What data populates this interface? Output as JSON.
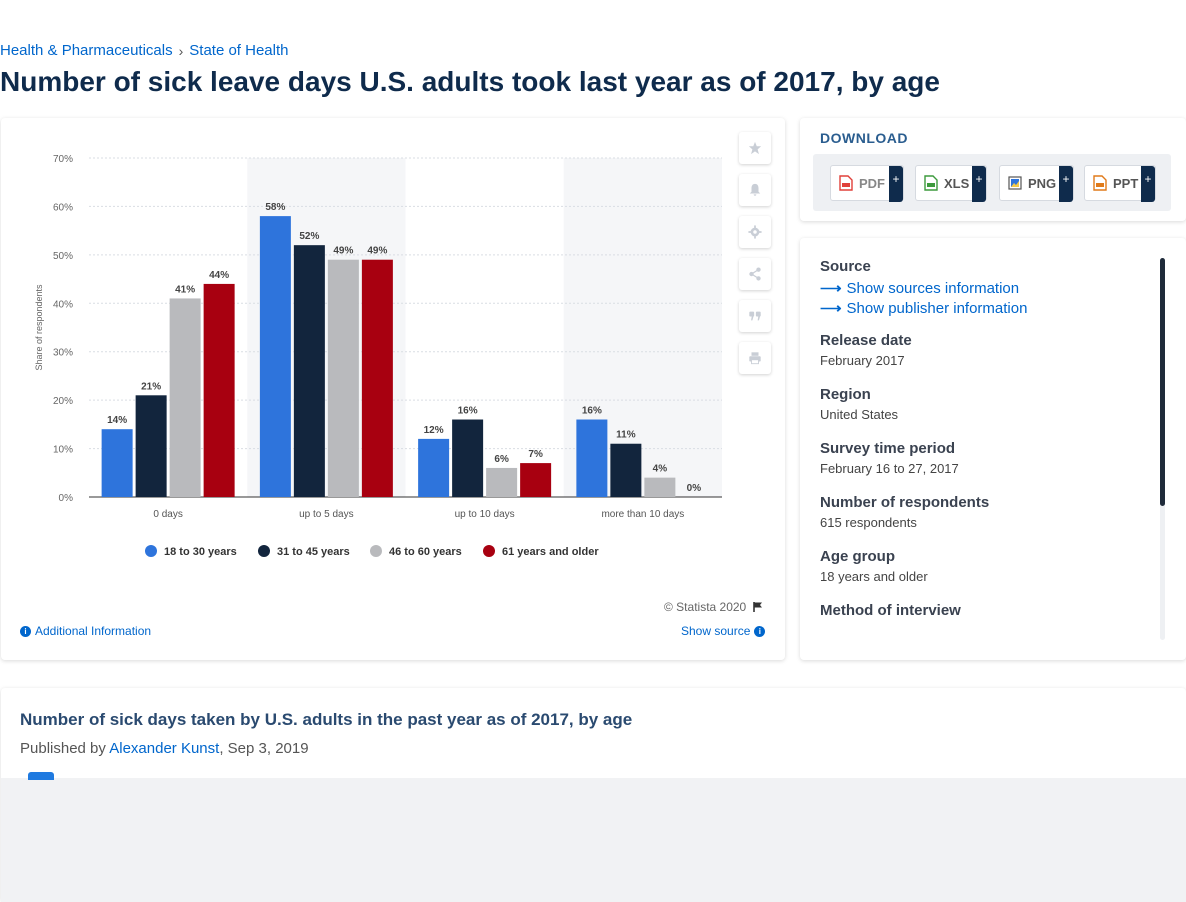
{
  "breadcrumb": {
    "items": [
      "Health & Pharmaceuticals",
      "State of Health"
    ],
    "separator": "›"
  },
  "page_title": "Number of sick leave days U.S. adults took last year as of 2017, by age",
  "chart_data": {
    "type": "bar",
    "categories": [
      "0 days",
      "up to 5 days",
      "up to 10 days",
      "more than 10 days"
    ],
    "series": [
      {
        "name": "18 to 30 years",
        "color": "#2e74dc",
        "values": [
          14,
          58,
          12,
          16
        ]
      },
      {
        "name": "31 to 45 years",
        "color": "#12253d",
        "values": [
          21,
          52,
          16,
          11
        ]
      },
      {
        "name": "46 to 60 years",
        "color": "#b9babd",
        "values": [
          41,
          49,
          6,
          4
        ]
      },
      {
        "name": "61 years and older",
        "color": "#a80010",
        "values": [
          44,
          49,
          7,
          0
        ]
      }
    ],
    "ylabel": "Share of respondents",
    "yticks": [
      "0%",
      "10%",
      "20%",
      "30%",
      "40%",
      "50%",
      "60%",
      "70%"
    ],
    "ylim": [
      0,
      70
    ],
    "value_suffix": "%",
    "grid": true,
    "legend_position": "bottom"
  },
  "chart_footer": {
    "copyright": "© Statista 2020",
    "additional_info": "Additional Information",
    "show_source": "Show source"
  },
  "toolbar": {
    "icons": [
      "star-icon",
      "bell-icon",
      "gear-icon",
      "share-icon",
      "quote-icon",
      "print-icon"
    ]
  },
  "download": {
    "title": "DOWNLOAD",
    "buttons": [
      {
        "label": "PDF",
        "icon": "pdf-file-icon",
        "color": "#e0403a"
      },
      {
        "label": "XLS",
        "icon": "xls-file-icon",
        "color": "#3d9a3d"
      },
      {
        "label": "PNG",
        "icon": "png-file-icon",
        "color": "#2e74dc"
      },
      {
        "label": "PPT",
        "icon": "ppt-file-icon",
        "color": "#e07a1a"
      }
    ],
    "plus": "+"
  },
  "meta": {
    "source_heading": "Source",
    "show_sources": "Show sources information",
    "show_publisher": "Show publisher information",
    "release_date_heading": "Release date",
    "release_date": "February 2017",
    "region_heading": "Region",
    "region": "United States",
    "survey_period_heading": "Survey time period",
    "survey_period": "February 16 to 27, 2017",
    "respondents_heading": "Number of respondents",
    "respondents": "615 respondents",
    "age_group_heading": "Age group",
    "age_group": "18 years and older",
    "method_heading": "Method of interview"
  },
  "publication": {
    "title": "Number of sick days taken by U.S. adults in the past year as of 2017, by age",
    "published_by": "Published by",
    "author": "Alexander Kunst",
    "date": ", Sep 3, 2019"
  },
  "colors": {
    "link": "#0066cc",
    "title": "#0f2b4c"
  }
}
